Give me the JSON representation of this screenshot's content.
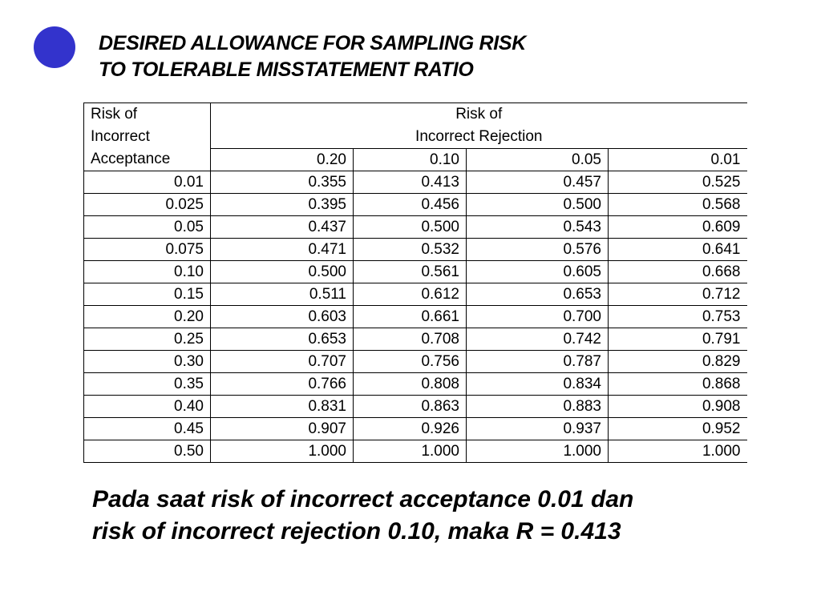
{
  "title": {
    "line1": "DESIRED ALLOWANCE FOR SAMPLING RISK",
    "line2": "TO TOLERABLE MISSTATEMENT RATIO"
  },
  "table": {
    "corner_header": [
      "Risk of",
      "Incorrect",
      "Acceptance"
    ],
    "group_header": [
      "Risk of",
      "Incorrect Rejection"
    ],
    "columns": [
      "0.20",
      "0.10",
      "0.05",
      "0.01"
    ],
    "rows": [
      {
        "label": "0.01",
        "values": [
          "0.355",
          "0.413",
          "0.457",
          "0.525"
        ]
      },
      {
        "label": "0.025",
        "values": [
          "0.395",
          "0.456",
          "0.500",
          "0.568"
        ]
      },
      {
        "label": "0.05",
        "values": [
          "0.437",
          "0.500",
          "0.543",
          "0.609"
        ]
      },
      {
        "label": "0.075",
        "values": [
          "0.471",
          "0.532",
          "0.576",
          "0.641"
        ]
      },
      {
        "label": "0.10",
        "values": [
          "0.500",
          "0.561",
          "0.605",
          "0.668"
        ]
      },
      {
        "label": "0.15",
        "values": [
          "0.511",
          "0.612",
          "0.653",
          "0.712"
        ]
      },
      {
        "label": "0.20",
        "values": [
          "0.603",
          "0.661",
          "0.700",
          "0.753"
        ]
      },
      {
        "label": "0.25",
        "values": [
          "0.653",
          "0.708",
          "0.742",
          "0.791"
        ]
      },
      {
        "label": "0.30",
        "values": [
          "0.707",
          "0.756",
          "0.787",
          "0.829"
        ]
      },
      {
        "label": "0.35",
        "values": [
          "0.766",
          "0.808",
          "0.834",
          "0.868"
        ]
      },
      {
        "label": "0.40",
        "values": [
          "0.831",
          "0.863",
          "0.883",
          "0.908"
        ]
      },
      {
        "label": "0.45",
        "values": [
          "0.907",
          "0.926",
          "0.937",
          "0.952"
        ]
      },
      {
        "label": "0.50",
        "values": [
          "1.000",
          "1.000",
          "1.000",
          "1.000"
        ]
      }
    ]
  },
  "note": {
    "line1": "Pada saat risk of incorrect acceptance 0.01 dan",
    "line2": "risk of incorrect rejection 0.10, maka R = 0.413"
  },
  "colors": {
    "bullet": "#3333cc",
    "text": "#000000",
    "background": "#ffffff"
  }
}
